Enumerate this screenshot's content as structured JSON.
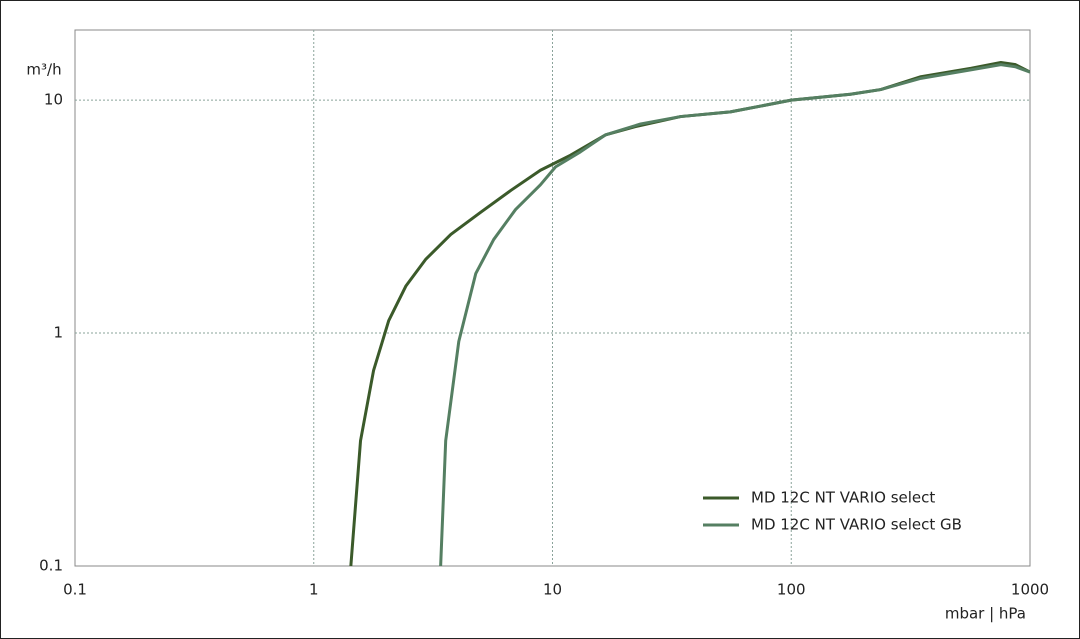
{
  "chart_data": {
    "type": "line",
    "x_label": "mbar | hPa",
    "y_label": "m³/h",
    "log_x": true,
    "log_y": true,
    "grid": true,
    "legend": "lower right",
    "xlim": [
      0.1,
      1000
    ],
    "xticks": [
      0.1,
      1,
      10,
      100,
      1000
    ],
    "ylim": [
      0.1,
      20
    ],
    "yticks": [
      0.1,
      1,
      10
    ],
    "series": [
      {
        "name": "MD 12C NT VARIO select",
        "color": "#3b5a2a",
        "x": [
          1.43,
          1.57,
          1.78,
          2.06,
          2.43,
          2.94,
          3.75,
          5.0,
          6.7,
          8.9,
          11.9,
          16.7,
          22.3,
          34.4,
          55.6,
          100,
          177,
          237,
          349,
          568,
          755,
          870,
          1000
        ],
        "values": [
          0.1,
          0.345,
          0.69,
          1.13,
          1.59,
          2.07,
          2.65,
          3.3,
          4.1,
          5.0,
          5.8,
          7.1,
          7.7,
          8.5,
          8.9,
          10,
          10.6,
          11.1,
          12.6,
          13.7,
          14.5,
          14.2,
          13.2
        ]
      },
      {
        "name": "MD 12C NT VARIO select GB",
        "color": "#557f62",
        "x": [
          3.4,
          3.57,
          4.05,
          4.77,
          5.67,
          7.0,
          8.9,
          10.3,
          13.1,
          16.7,
          23.4,
          34.4,
          55.6,
          100,
          177,
          237,
          349,
          568,
          755,
          870,
          1000
        ],
        "values": [
          0.1,
          0.345,
          0.92,
          1.8,
          2.52,
          3.39,
          4.33,
          5.17,
          6.0,
          7.1,
          7.9,
          8.5,
          8.9,
          10,
          10.6,
          11.1,
          12.4,
          13.5,
          14.2,
          13.9,
          13.2
        ]
      }
    ]
  }
}
